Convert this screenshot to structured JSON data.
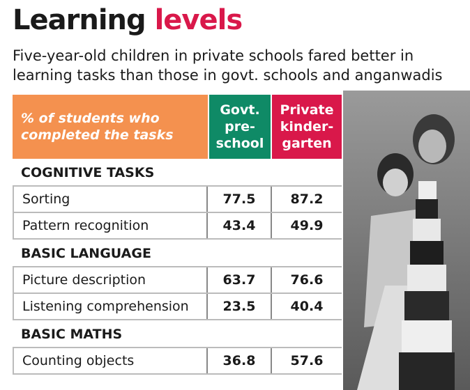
{
  "header": {
    "title": [
      "Learning",
      "levels"
    ],
    "subtitle": "Five-year-old children in private schools fared better in learning tasks than those in govt. schools and anganwadis"
  },
  "table": {
    "columns": [
      [
        "% of students who",
        "completed the tasks"
      ],
      [
        "Govt.",
        "pre-",
        "school"
      ],
      [
        "Private",
        "kinder-",
        "garten"
      ]
    ],
    "sections": [
      {
        "title": "COGNITIVE TASKS",
        "rows": [
          [
            "Sorting",
            "77.5",
            "87.2"
          ],
          [
            "Pattern recognition",
            "43.4",
            "49.9"
          ]
        ]
      },
      {
        "title": "BASIC LANGUAGE",
        "rows": [
          [
            "Picture description",
            "63.7",
            "76.6"
          ],
          [
            "Listening comprehension",
            "23.5",
            "40.4"
          ]
        ]
      },
      {
        "title": "BASIC MATHS",
        "rows": [
          [
            "Counting objects",
            "36.8",
            "57.6"
          ]
        ]
      }
    ]
  }
}
